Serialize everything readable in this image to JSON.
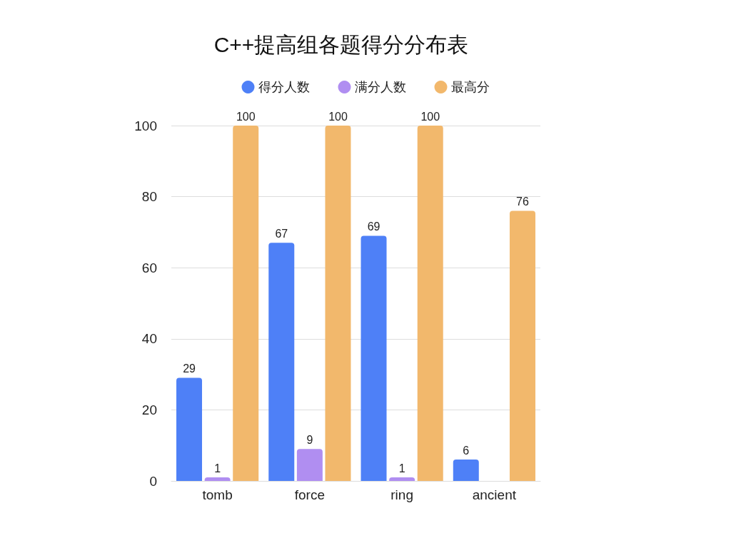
{
  "chart_data": {
    "type": "bar",
    "title": "C++提高组各题得分分布表",
    "categories": [
      "tomb",
      "force",
      "ring",
      "ancient"
    ],
    "series": [
      {
        "name": "得分人数",
        "color": "#4e80f7",
        "values": [
          29,
          67,
          69,
          6
        ],
        "value_labels": [
          "29",
          "67",
          "69",
          "6"
        ]
      },
      {
        "name": "满分人数",
        "color": "#b08ef1",
        "values": [
          1,
          9,
          1,
          0
        ],
        "value_labels": [
          "1",
          "9",
          "1",
          null
        ]
      },
      {
        "name": "最高分",
        "color": "#f2b86c",
        "values": [
          100,
          100,
          100,
          76
        ],
        "value_labels": [
          "100",
          "100",
          "100",
          "76"
        ]
      }
    ],
    "ylim": [
      0,
      100
    ],
    "yticks": [
      0,
      20,
      40,
      60,
      80,
      100
    ],
    "grid": "y",
    "legend": "top"
  }
}
